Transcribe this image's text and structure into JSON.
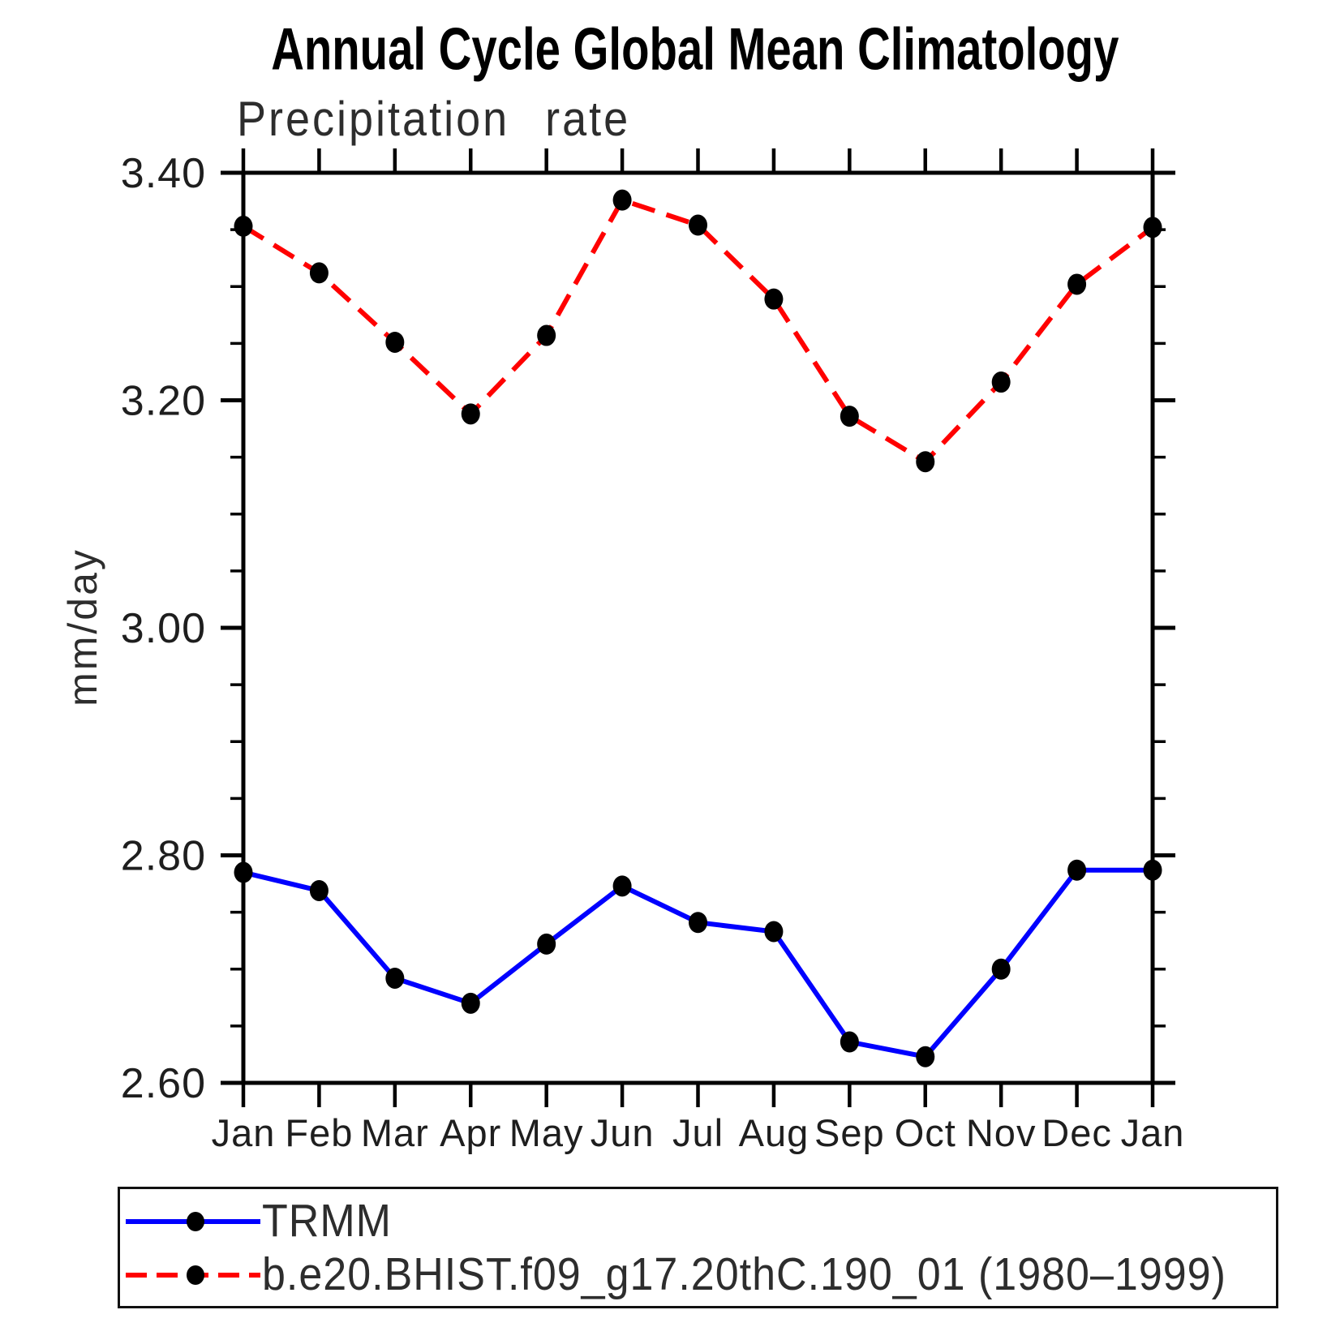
{
  "chart_data": {
    "type": "line",
    "title": "Annual Cycle Global Mean Climatology",
    "subtitle": "Precipitation rate",
    "ylabel": "mm/day",
    "x_categories": [
      "Jan",
      "Feb",
      "Mar",
      "Apr",
      "May",
      "Jun",
      "Jul",
      "Aug",
      "Sep",
      "Oct",
      "Nov",
      "Dec",
      "Jan"
    ],
    "ylim": [
      2.6,
      3.4
    ],
    "y_major_ticks": [
      {
        "value": 3.4,
        "label": "3.40"
      },
      {
        "value": 3.2,
        "label": "3.20"
      },
      {
        "value": 3.0,
        "label": "3.00"
      },
      {
        "value": 2.8,
        "label": "2.80"
      },
      {
        "value": 2.6,
        "label": "2.60"
      }
    ],
    "y_minor_tick_step": 0.05,
    "grid": false,
    "legend_position": "bottom-left",
    "axis_color": "#000000",
    "series": [
      {
        "name": "TRMM",
        "color": "#0000ff",
        "line_style": "solid",
        "marker": "filled-circle",
        "marker_color": "#000000",
        "values": [
          2.785,
          2.769,
          2.692,
          2.67,
          2.722,
          2.773,
          2.741,
          2.733,
          2.636,
          2.623,
          2.7,
          2.787,
          2.787
        ]
      },
      {
        "name": "b.e20.BHIST.f09_g17.20thC.190_01 (1980–1999)",
        "color": "#ff0000",
        "line_style": "dashed",
        "marker": "filled-circle",
        "marker_color": "#000000",
        "values": [
          3.353,
          3.312,
          3.251,
          3.188,
          3.257,
          3.376,
          3.354,
          3.289,
          3.186,
          3.146,
          3.216,
          3.302,
          3.352
        ]
      }
    ]
  }
}
